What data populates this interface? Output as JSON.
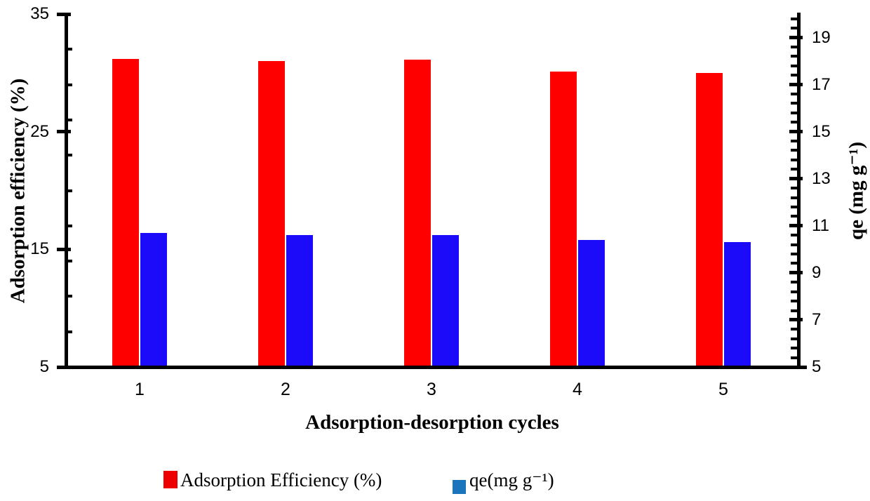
{
  "figure": {
    "left_axis_title": "Adsorption efficiency (%)",
    "right_axis_title": "qe (mg g⁻¹)",
    "x_axis_title": "Adsorption-desorption cycles"
  },
  "legend": {
    "position": "bottom",
    "items": [
      {
        "label": "Adsorption Efficiency (%)",
        "marker_color": "#ee0000"
      },
      {
        "label": "qe(mg g⁻¹)",
        "marker_color": "#1b75bc"
      }
    ]
  },
  "chart_data": {
    "type": "bar",
    "title": "",
    "categories": [
      "1",
      "2",
      "3",
      "4",
      "5"
    ],
    "series": [
      {
        "name": "Adsorption Efficiency (%)",
        "axis": "left",
        "color": "#fe0000",
        "values": [
          31.2,
          31.0,
          31.1,
          30.1,
          30.0
        ]
      },
      {
        "name": "qe(mg g⁻¹)",
        "axis": "right",
        "color": "#1c0bf8",
        "values": [
          10.7,
          10.6,
          10.6,
          10.4,
          10.3
        ]
      }
    ],
    "xlabel": "Adsorption-desorption cycles",
    "left_axis": {
      "label": "Adsorption efficiency (%)",
      "min": 5,
      "max": 35,
      "major_ticks": [
        5,
        15,
        25,
        35
      ],
      "minor_unit": 3
    },
    "right_axis": {
      "label": "qe (mg g⁻¹)",
      "min": 5,
      "max": 20,
      "major_ticks": [
        5,
        7,
        9,
        11,
        13,
        15,
        17,
        19
      ],
      "minor_unit": 0.4
    },
    "grid": false,
    "legend_position": "bottom"
  }
}
